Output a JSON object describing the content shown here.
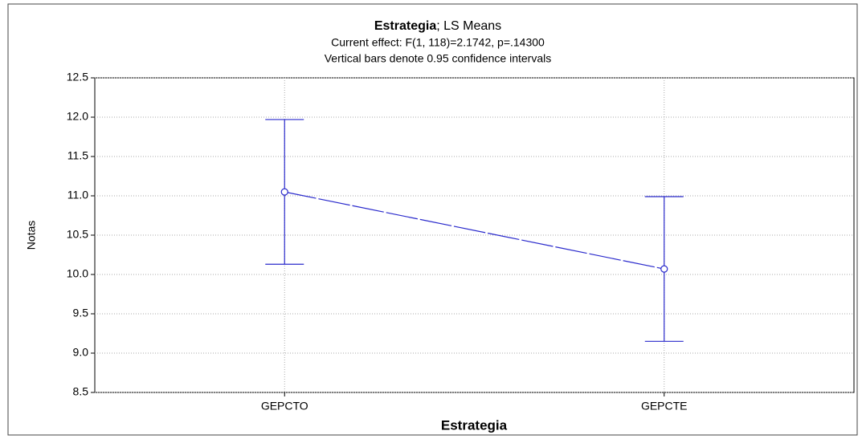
{
  "chart_data": {
    "type": "errorline",
    "title": {
      "bold": "Estrategia",
      "rest": "; LS Means"
    },
    "subtitle": "Current effect: F(1, 118)=2.1742, p=.14300",
    "note": "Vertical bars denote 0.95 confidence intervals",
    "x_label": "Estrategia",
    "y_label": "Notas",
    "categories": [
      "GEPCTO",
      "GEPCTE"
    ],
    "values": [
      11.05,
      10.07
    ],
    "errors": [
      0.92,
      0.92
    ],
    "color": "#2a2acc",
    "ylim": [
      8.5,
      12.5
    ],
    "yticks": [
      8.5,
      {
        "value": 9,
        "label": "9.0"
      },
      9.5,
      {
        "value": 10,
        "label": "10.0"
      },
      10.5,
      {
        "value": 11,
        "label": "11.0"
      },
      11.5,
      {
        "value": 12,
        "label": "12.0"
      },
      12.5
    ],
    "grid": true
  }
}
